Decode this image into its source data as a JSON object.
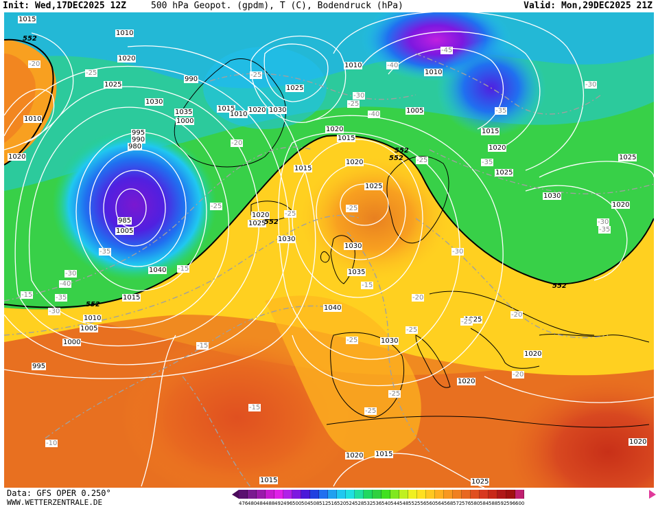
{
  "header": {
    "init": "Init: Wed,17DEC2025 12Z",
    "title": "500 hPa Geopot. (gpdm), T (C), Bodendruck (hPa)",
    "valid": "Valid: Mon,29DEC2025 21Z"
  },
  "footer": {
    "source": "Data: GFS OPER 0.250°",
    "site": "WWW.WETTERZENTRALE.DE"
  },
  "colorbar": {
    "ticks": [
      "476",
      "480",
      "484",
      "488",
      "492",
      "496",
      "500",
      "504",
      "508",
      "512",
      "516",
      "520",
      "524",
      "528",
      "532",
      "536",
      "540",
      "544",
      "548",
      "552",
      "556",
      "560",
      "564",
      "568",
      "572",
      "576",
      "580",
      "584",
      "588",
      "592",
      "596",
      "600"
    ],
    "colors": [
      "#5a1070",
      "#7a1a90",
      "#9a1aaa",
      "#c81ad0",
      "#e020e8",
      "#b020e8",
      "#7d18e0",
      "#4a18d8",
      "#2040e0",
      "#2070f0",
      "#20a0f0",
      "#20c8f0",
      "#20e0e0",
      "#20e0a0",
      "#20d860",
      "#30d040",
      "#40e020",
      "#80e820",
      "#c0f020",
      "#f0f020",
      "#ffe020",
      "#ffc820",
      "#ffb020",
      "#f89820",
      "#f08020",
      "#e86820",
      "#e05020",
      "#d83820",
      "#c82818",
      "#b01818",
      "#a01010",
      "#c02070"
    ]
  },
  "isobar_labels": [
    "1015",
    "1010",
    "1020",
    "1025",
    "1030",
    "1035",
    "1000",
    "995",
    "990",
    "980",
    "985",
    "1005",
    "1040",
    "1015",
    "1010",
    "1020",
    "1025",
    "1030",
    "1035",
    "1040",
    "1030",
    "1025",
    "1020",
    "1015",
    "1010",
    "1005",
    "1000",
    "995",
    "990",
    "1015",
    "1010",
    "1020",
    "1030",
    "1025",
    "1020",
    "1015",
    "1020",
    "1025",
    "1030",
    "1020",
    "1010",
    "1005",
    "1010",
    "1015",
    "1020",
    "1025",
    "1030",
    "1025",
    "1020",
    "1020",
    "1020",
    "1015",
    "1025",
    "1015",
    "1020"
  ],
  "temp_labels": [
    "-20",
    "-25",
    "-15",
    "-35",
    "-30",
    "-40",
    "-35",
    "-30",
    "-25",
    "-40",
    "-45",
    "-35",
    "-30",
    "-25",
    "-40",
    "-35",
    "-30",
    "-25",
    "-20",
    "-15",
    "-25",
    "-25",
    "-30",
    "-25",
    "-20",
    "-25",
    "-15",
    "-25",
    "-25",
    "-20",
    "-15",
    "-10",
    "-30",
    "-35",
    "-25",
    "-20",
    "-15",
    "-25"
  ],
  "geopot_labels": [
    "552",
    "552",
    "552",
    "552",
    "552",
    "552"
  ]
}
